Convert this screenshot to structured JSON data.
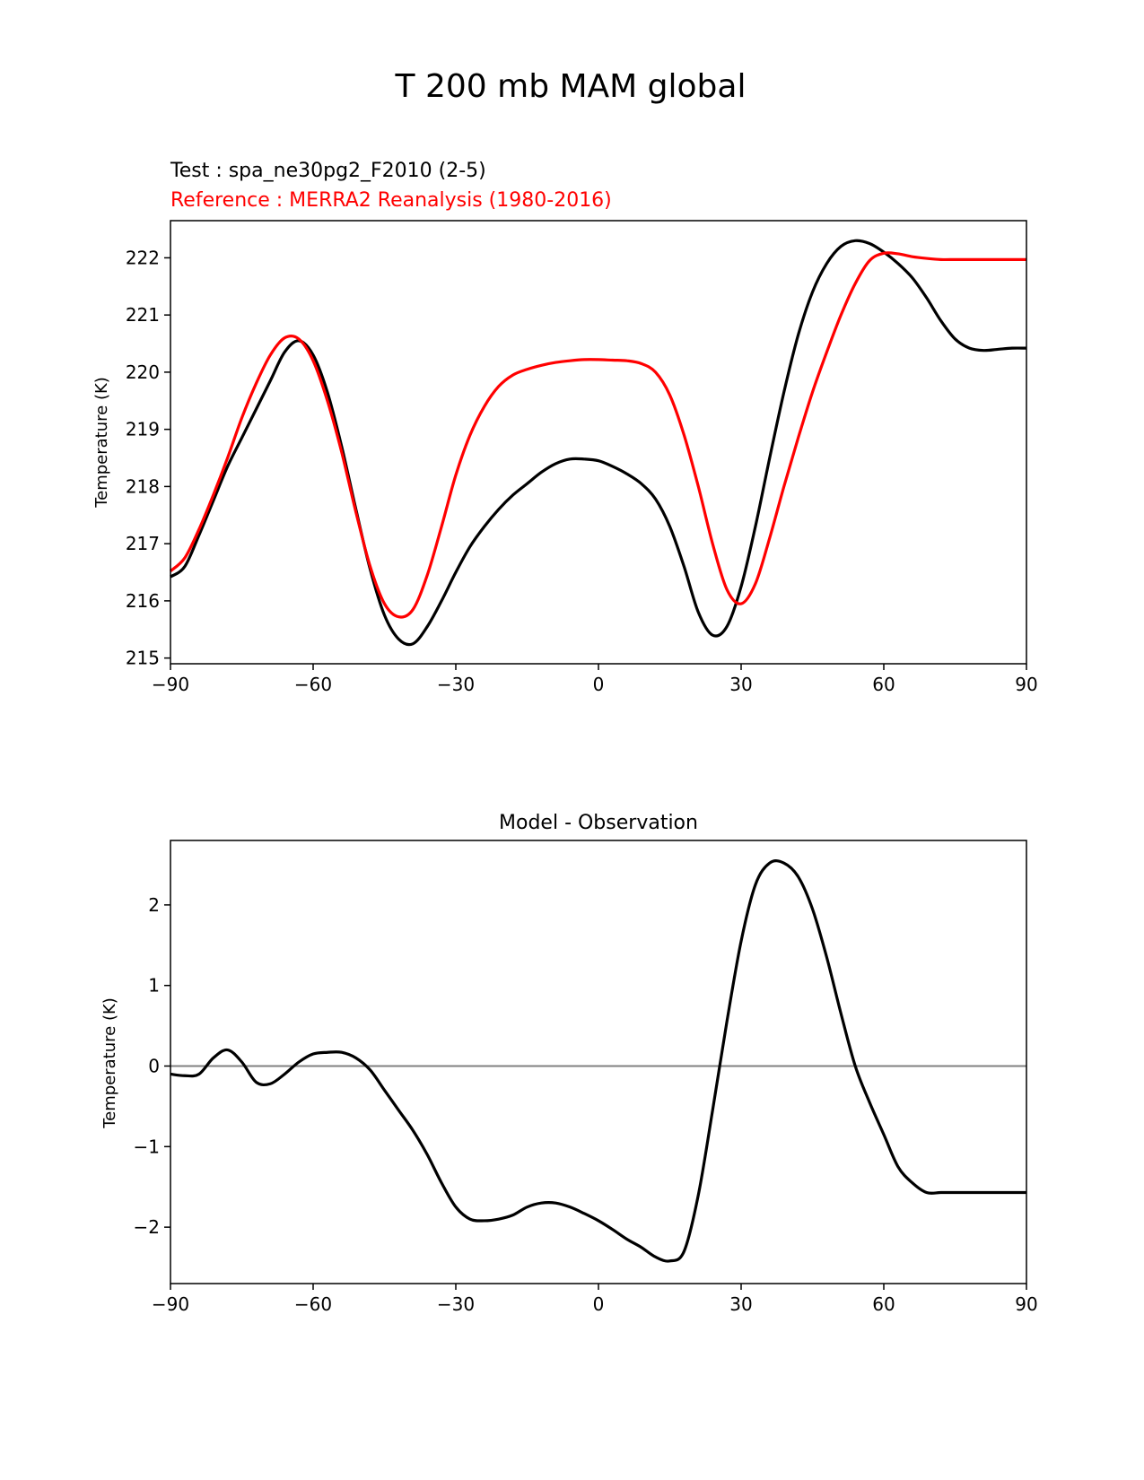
{
  "figure": {
    "suptitle": "T 200 mb MAM global"
  },
  "chart_data": [
    {
      "type": "line",
      "title_lines": [
        {
          "text": "Test : spa_ne30pg2_F2010 (2-5)",
          "color": "#000000"
        },
        {
          "text": "Reference : MERRA2 Reanalysis (1980-2016)",
          "color": "#ff0000"
        }
      ],
      "xlabel": "",
      "ylabel": "Temperature (K)",
      "xlim": [
        -90,
        90
      ],
      "ylim": [
        214.9,
        222.65
      ],
      "xticks": [
        -90,
        -60,
        -30,
        0,
        30,
        60,
        90
      ],
      "xtick_labels": [
        "−90",
        "−60",
        "−30",
        "0",
        "30",
        "60",
        "90"
      ],
      "yticks": [
        215,
        216,
        217,
        218,
        219,
        220,
        221,
        222
      ],
      "ytick_labels": [
        "215",
        "216",
        "217",
        "218",
        "219",
        "220",
        "221",
        "222"
      ],
      "grid": false,
      "series": [
        {
          "color": "#000000",
          "x": [
            -90,
            -87,
            -84,
            -81,
            -78,
            -75,
            -72,
            -69,
            -66,
            -63,
            -60,
            -57,
            -54,
            -51,
            -48,
            -45,
            -42,
            -39,
            -36,
            -33,
            -30,
            -27,
            -24,
            -21,
            -18,
            -15,
            -12,
            -9,
            -6,
            -3,
            0,
            3,
            6,
            9,
            12,
            15,
            18,
            21,
            24,
            27,
            30,
            33,
            36,
            39,
            42,
            45,
            48,
            51,
            54,
            57,
            60,
            63,
            66,
            69,
            72,
            75,
            78,
            81,
            84,
            87,
            90
          ],
          "y": [
            216.42,
            216.6,
            217.15,
            217.75,
            218.35,
            218.85,
            219.35,
            219.85,
            220.35,
            220.55,
            220.3,
            219.65,
            218.7,
            217.6,
            216.55,
            215.75,
            215.33,
            215.25,
            215.55,
            216.0,
            216.5,
            216.95,
            217.3,
            217.6,
            217.85,
            218.05,
            218.25,
            218.4,
            218.48,
            218.48,
            218.45,
            218.35,
            218.22,
            218.05,
            217.78,
            217.3,
            216.6,
            215.8,
            215.4,
            215.55,
            216.25,
            217.3,
            218.5,
            219.65,
            220.65,
            221.4,
            221.9,
            222.2,
            222.3,
            222.25,
            222.1,
            221.9,
            221.65,
            221.3,
            220.9,
            220.58,
            220.42,
            220.38,
            220.4,
            220.42,
            220.42
          ]
        },
        {
          "color": "#ff0000",
          "x": [
            -90,
            -87,
            -84,
            -81,
            -78,
            -75,
            -72,
            -69,
            -66,
            -63,
            -60,
            -57,
            -54,
            -51,
            -48,
            -45,
            -42,
            -39,
            -36,
            -33,
            -30,
            -27,
            -24,
            -21,
            -18,
            -15,
            -12,
            -9,
            -6,
            -3,
            0,
            3,
            6,
            9,
            12,
            15,
            18,
            21,
            24,
            27,
            30,
            33,
            36,
            39,
            42,
            45,
            48,
            51,
            54,
            57,
            60,
            63,
            66,
            69,
            72,
            75,
            78,
            81,
            84,
            87,
            90
          ],
          "y": [
            216.52,
            216.75,
            217.25,
            217.85,
            218.5,
            219.2,
            219.8,
            220.3,
            220.6,
            220.58,
            220.2,
            219.5,
            218.6,
            217.55,
            216.6,
            215.95,
            215.72,
            215.85,
            216.45,
            217.3,
            218.2,
            218.9,
            219.4,
            219.75,
            219.95,
            220.05,
            220.12,
            220.17,
            220.2,
            220.22,
            220.22,
            220.21,
            220.2,
            220.15,
            220.0,
            219.6,
            218.9,
            218.0,
            217.0,
            216.2,
            215.95,
            216.3,
            217.1,
            218.0,
            218.85,
            219.65,
            220.35,
            221.0,
            221.55,
            221.95,
            222.08,
            222.07,
            222.02,
            221.99,
            221.97,
            221.97,
            221.97,
            221.97,
            221.97,
            221.97,
            221.97
          ]
        }
      ]
    },
    {
      "type": "line",
      "title": "Model - Observation",
      "xlabel": "",
      "ylabel": "Temperature (K)",
      "xlim": [
        -90,
        90
      ],
      "ylim": [
        -2.7,
        2.8
      ],
      "xticks": [
        -90,
        -60,
        -30,
        0,
        30,
        60,
        90
      ],
      "xtick_labels": [
        "−90",
        "−60",
        "−30",
        "0",
        "30",
        "60",
        "90"
      ],
      "yticks": [
        -2,
        -1,
        0,
        1,
        2
      ],
      "ytick_labels": [
        "−2",
        "−1",
        "0",
        "1",
        "2"
      ],
      "grid": false,
      "reference_line": {
        "y": 0,
        "color": "#808080"
      },
      "series": [
        {
          "color": "#000000",
          "x": [
            -90,
            -87,
            -84,
            -81,
            -78,
            -75,
            -72,
            -69,
            -66,
            -63,
            -60,
            -57,
            -54,
            -51,
            -48,
            -45,
            -42,
            -39,
            -36,
            -33,
            -30,
            -27,
            -24,
            -21,
            -18,
            -15,
            -12,
            -9,
            -6,
            -3,
            0,
            3,
            6,
            9,
            12,
            15,
            18,
            21,
            24,
            27,
            30,
            33,
            36,
            39,
            42,
            45,
            48,
            51,
            54,
            57,
            60,
            63,
            66,
            69,
            72,
            75,
            78,
            81,
            84,
            87,
            90
          ],
          "y": [
            -0.1,
            -0.12,
            -0.1,
            0.1,
            0.2,
            0.05,
            -0.2,
            -0.22,
            -0.1,
            0.05,
            0.15,
            0.17,
            0.17,
            0.1,
            -0.05,
            -0.3,
            -0.55,
            -0.8,
            -1.1,
            -1.45,
            -1.75,
            -1.9,
            -1.92,
            -1.9,
            -1.85,
            -1.75,
            -1.7,
            -1.7,
            -1.75,
            -1.83,
            -1.92,
            -2.03,
            -2.15,
            -2.25,
            -2.37,
            -2.42,
            -2.3,
            -1.6,
            -0.55,
            0.55,
            1.55,
            2.25,
            2.52,
            2.52,
            2.35,
            1.95,
            1.35,
            0.65,
            0.0,
            -0.45,
            -0.85,
            -1.25,
            -1.45,
            -1.57,
            -1.57,
            -1.57,
            -1.57,
            -1.57,
            -1.57,
            -1.57,
            -1.57
          ]
        }
      ]
    }
  ]
}
